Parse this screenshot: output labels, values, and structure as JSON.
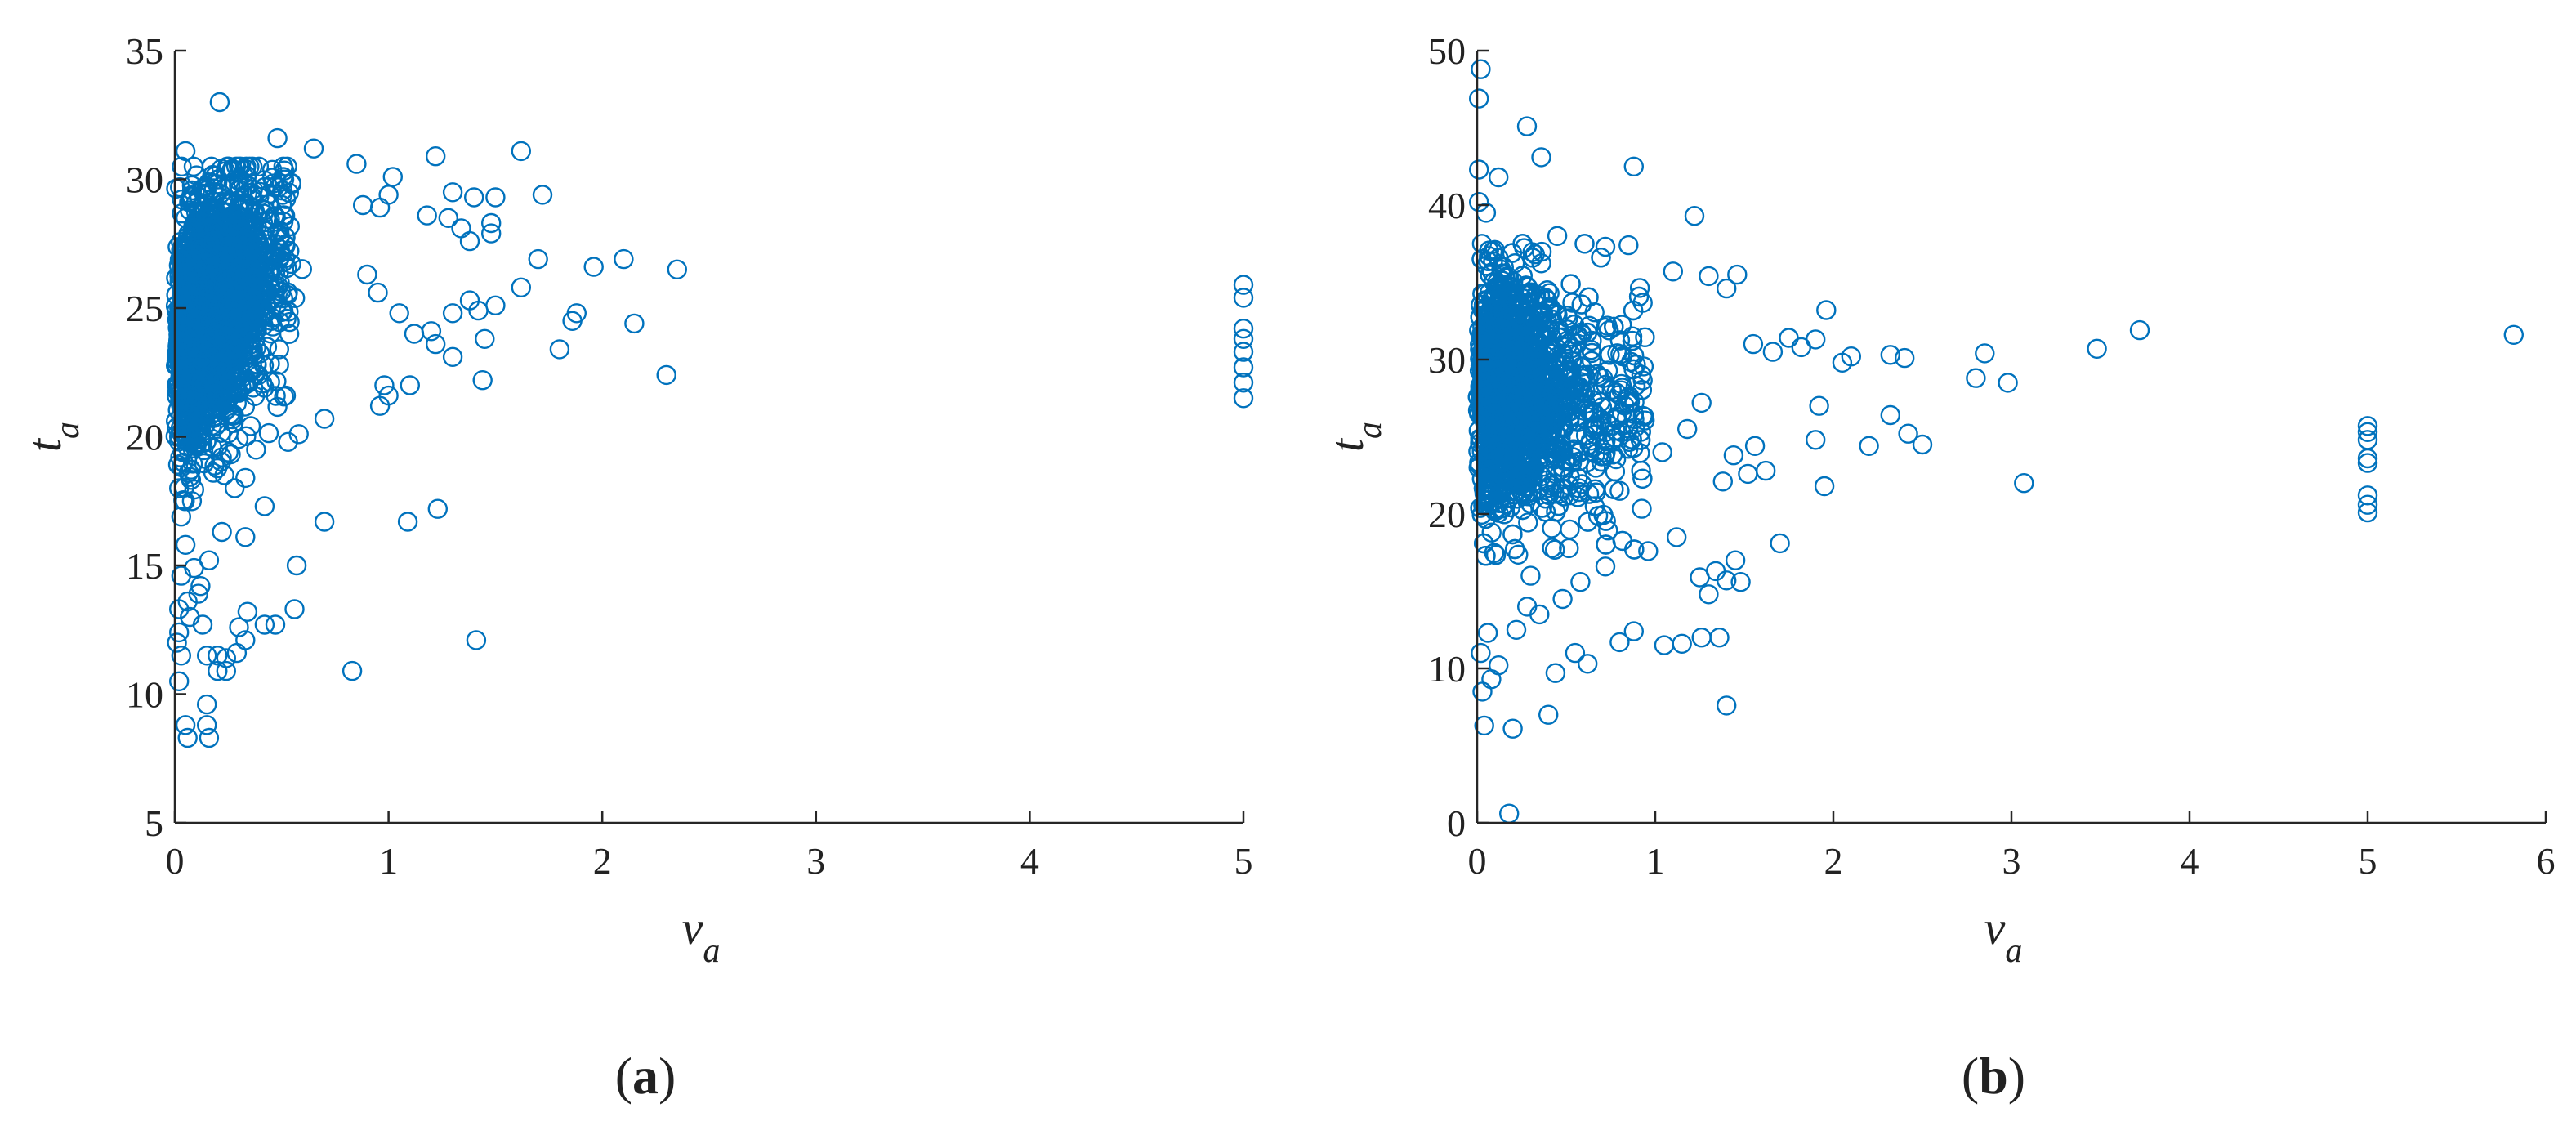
{
  "colors": {
    "marker": "#0072BD",
    "axis": "#262626"
  },
  "chart_data": [
    {
      "type": "scatter",
      "panel_label": "(a)",
      "xlabel": {
        "main": "v",
        "sub": "a"
      },
      "ylabel": {
        "main": "t",
        "sub": "a"
      },
      "xlim": [
        0,
        5
      ],
      "ylim": [
        5,
        35
      ],
      "xticks": [
        0,
        1,
        2,
        3,
        4,
        5
      ],
      "yticks": [
        5,
        10,
        15,
        20,
        25,
        30,
        35
      ],
      "marker": "circle-open",
      "grid": false,
      "legend": "none",
      "points": [
        [
          0.21,
          33.0
        ],
        [
          0.05,
          31.1
        ],
        [
          0.48,
          31.6
        ],
        [
          0.65,
          31.2
        ],
        [
          1.62,
          31.1
        ],
        [
          1.22,
          30.9
        ],
        [
          0.85,
          30.6
        ],
        [
          1.02,
          30.1
        ],
        [
          1.72,
          29.4
        ],
        [
          1.3,
          29.5
        ],
        [
          1.4,
          29.3
        ],
        [
          1.5,
          29.3
        ],
        [
          1.0,
          29.4
        ],
        [
          0.88,
          29.0
        ],
        [
          0.96,
          28.9
        ],
        [
          1.18,
          28.6
        ],
        [
          1.28,
          28.5
        ],
        [
          1.48,
          28.3
        ],
        [
          1.34,
          28.1
        ],
        [
          1.38,
          27.6
        ],
        [
          1.48,
          27.9
        ],
        [
          1.7,
          26.9
        ],
        [
          1.96,
          26.6
        ],
        [
          2.1,
          26.9
        ],
        [
          2.35,
          26.5
        ],
        [
          1.62,
          25.8
        ],
        [
          1.38,
          25.3
        ],
        [
          1.5,
          25.1
        ],
        [
          1.42,
          24.9
        ],
        [
          1.3,
          24.8
        ],
        [
          1.88,
          24.8
        ],
        [
          1.86,
          24.5
        ],
        [
          2.15,
          24.4
        ],
        [
          1.2,
          24.1
        ],
        [
          1.45,
          23.8
        ],
        [
          1.8,
          23.4
        ],
        [
          1.22,
          23.6
        ],
        [
          1.3,
          23.1
        ],
        [
          1.12,
          24.0
        ],
        [
          1.05,
          24.8
        ],
        [
          0.95,
          25.6
        ],
        [
          0.9,
          26.3
        ],
        [
          2.3,
          22.4
        ],
        [
          1.44,
          22.2
        ],
        [
          0.98,
          22.0
        ],
        [
          1.0,
          21.6
        ],
        [
          1.1,
          22.0
        ],
        [
          0.96,
          21.2
        ],
        [
          0.7,
          20.7
        ],
        [
          0.58,
          20.1
        ],
        [
          0.53,
          19.8
        ],
        [
          0.38,
          19.5
        ],
        [
          0.22,
          19.2
        ],
        [
          0.18,
          18.6
        ],
        [
          0.33,
          18.4
        ],
        [
          0.28,
          18.0
        ],
        [
          0.42,
          17.3
        ],
        [
          0.7,
          16.7
        ],
        [
          1.09,
          16.7
        ],
        [
          1.23,
          17.2
        ],
        [
          0.33,
          16.1
        ],
        [
          0.22,
          16.3
        ],
        [
          0.57,
          15.0
        ],
        [
          0.16,
          15.2
        ],
        [
          0.12,
          14.2
        ],
        [
          0.06,
          13.6
        ],
        [
          0.56,
          13.3
        ],
        [
          0.34,
          13.2
        ],
        [
          0.02,
          13.3
        ],
        [
          0.13,
          12.7
        ],
        [
          0.3,
          12.6
        ],
        [
          0.42,
          12.7
        ],
        [
          0.47,
          12.7
        ],
        [
          0.33,
          12.1
        ],
        [
          0.02,
          12.4
        ],
        [
          0.2,
          11.5
        ],
        [
          0.24,
          11.4
        ],
        [
          0.15,
          11.5
        ],
        [
          0.29,
          11.6
        ],
        [
          0.03,
          11.5
        ],
        [
          0.2,
          10.9
        ],
        [
          0.24,
          10.9
        ],
        [
          0.83,
          10.9
        ],
        [
          1.41,
          12.1
        ],
        [
          0.02,
          10.5
        ],
        [
          0.15,
          9.6
        ],
        [
          0.05,
          8.8
        ],
        [
          0.15,
          8.8
        ],
        [
          0.06,
          8.3
        ],
        [
          0.16,
          8.3
        ],
        [
          0.02,
          20.0
        ],
        [
          0.04,
          19.0
        ],
        [
          0.02,
          18.0
        ],
        [
          0.08,
          17.5
        ],
        [
          0.03,
          16.9
        ],
        [
          0.05,
          15.8
        ],
        [
          0.09,
          14.9
        ],
        [
          0.03,
          14.6
        ],
        [
          0.11,
          13.9
        ],
        [
          0.07,
          13.0
        ],
        [
          0.01,
          12.0
        ],
        [
          5.0,
          21.5
        ],
        [
          5.0,
          22.1
        ],
        [
          5.0,
          22.7
        ],
        [
          5.0,
          23.3
        ],
        [
          5.0,
          23.8
        ],
        [
          5.0,
          24.2
        ],
        [
          5.0,
          25.4
        ],
        [
          5.0,
          25.9
        ]
      ],
      "dense_cluster": {
        "x_range": [
          0,
          0.5
        ],
        "y_range": [
          19,
          30
        ],
        "approx_count": 2600
      }
    },
    {
      "type": "scatter",
      "panel_label": "(b)",
      "xlabel": {
        "main": "v",
        "sub": "a"
      },
      "ylabel": {
        "main": "t",
        "sub": "a"
      },
      "xlim": [
        0,
        6
      ],
      "ylim": [
        0,
        50
      ],
      "xticks": [
        0,
        1,
        2,
        3,
        4,
        5,
        6
      ],
      "yticks": [
        0,
        10,
        20,
        30,
        40,
        50
      ],
      "marker": "circle-open",
      "grid": false,
      "legend": "none",
      "points": [
        [
          0.02,
          48.8
        ],
        [
          0.01,
          46.9
        ],
        [
          0.28,
          45.1
        ],
        [
          0.01,
          42.3
        ],
        [
          0.12,
          41.8
        ],
        [
          0.36,
          43.1
        ],
        [
          0.88,
          42.5
        ],
        [
          0.01,
          40.2
        ],
        [
          0.05,
          39.5
        ],
        [
          1.22,
          39.3
        ],
        [
          0.45,
          38.0
        ],
        [
          0.72,
          37.3
        ],
        [
          0.85,
          37.4
        ],
        [
          1.3,
          35.4
        ],
        [
          1.4,
          34.6
        ],
        [
          1.46,
          35.5
        ],
        [
          1.1,
          35.7
        ],
        [
          1.96,
          33.2
        ],
        [
          1.9,
          31.3
        ],
        [
          2.1,
          30.2
        ],
        [
          2.32,
          30.3
        ],
        [
          2.4,
          30.1
        ],
        [
          1.55,
          31.0
        ],
        [
          1.75,
          31.4
        ],
        [
          1.66,
          30.5
        ],
        [
          1.82,
          30.8
        ],
        [
          2.05,
          29.8
        ],
        [
          2.85,
          30.4
        ],
        [
          2.8,
          28.8
        ],
        [
          2.98,
          28.5
        ],
        [
          3.48,
          30.7
        ],
        [
          3.72,
          31.9
        ],
        [
          5.82,
          31.6
        ],
        [
          2.32,
          26.4
        ],
        [
          2.42,
          25.2
        ],
        [
          2.5,
          24.5
        ],
        [
          2.2,
          24.4
        ],
        [
          1.9,
          24.8
        ],
        [
          1.92,
          27.0
        ],
        [
          1.95,
          21.8
        ],
        [
          1.7,
          18.1
        ],
        [
          3.07,
          22.0
        ],
        [
          1.44,
          23.8
        ],
        [
          1.52,
          22.6
        ],
        [
          1.38,
          22.1
        ],
        [
          1.62,
          22.8
        ],
        [
          1.56,
          24.4
        ],
        [
          1.45,
          17.0
        ],
        [
          1.34,
          16.3
        ],
        [
          1.4,
          15.7
        ],
        [
          1.48,
          15.6
        ],
        [
          1.25,
          15.9
        ],
        [
          1.3,
          14.8
        ],
        [
          1.36,
          12.0
        ],
        [
          1.26,
          12.0
        ],
        [
          1.15,
          11.6
        ],
        [
          1.05,
          11.5
        ],
        [
          0.88,
          12.4
        ],
        [
          0.8,
          11.7
        ],
        [
          0.62,
          10.3
        ],
        [
          0.55,
          11.0
        ],
        [
          0.44,
          9.7
        ],
        [
          0.4,
          7.0
        ],
        [
          1.4,
          7.6
        ],
        [
          0.2,
          6.1
        ],
        [
          0.04,
          6.3
        ],
        [
          0.18,
          0.6
        ],
        [
          0.03,
          8.5
        ],
        [
          0.08,
          9.3
        ],
        [
          0.12,
          10.2
        ],
        [
          0.02,
          11.0
        ],
        [
          0.06,
          12.3
        ],
        [
          0.22,
          12.5
        ],
        [
          0.35,
          13.5
        ],
        [
          0.48,
          14.5
        ],
        [
          0.58,
          15.6
        ],
        [
          0.72,
          16.6
        ],
        [
          0.96,
          17.6
        ],
        [
          1.12,
          18.5
        ],
        [
          0.3,
          16.0
        ],
        [
          0.42,
          17.8
        ],
        [
          0.52,
          19.0
        ],
        [
          0.66,
          20.5
        ],
        [
          0.8,
          21.5
        ],
        [
          0.92,
          22.8
        ],
        [
          1.04,
          24.0
        ],
        [
          1.18,
          25.5
        ],
        [
          1.26,
          27.2
        ],
        [
          0.76,
          24.8
        ],
        [
          0.66,
          26.5
        ],
        [
          5.0,
          20.1
        ],
        [
          5.0,
          20.6
        ],
        [
          5.0,
          21.2
        ],
        [
          5.0,
          23.3
        ],
        [
          5.0,
          23.6
        ],
        [
          5.0,
          24.8
        ],
        [
          5.0,
          25.3
        ],
        [
          5.0,
          25.7
        ]
      ],
      "dense_cluster": {
        "x_range": [
          0,
          0.8
        ],
        "y_range": [
          17,
          37
        ],
        "approx_count": 2800
      }
    }
  ]
}
